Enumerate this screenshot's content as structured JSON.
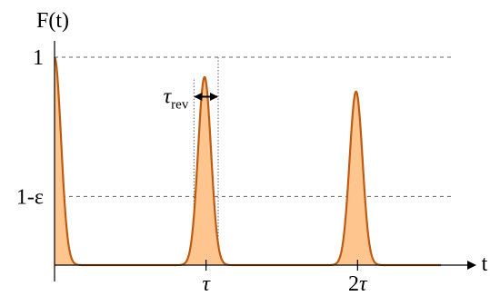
{
  "chart_data": {
    "type": "area",
    "title": "",
    "ylabel": "F(t)",
    "xlabel": "t",
    "xlim": [
      0,
      2.55
    ],
    "ylim": [
      0,
      1
    ],
    "y_ticks": [
      {
        "value": 1.0,
        "label": "1"
      },
      {
        "value": 0.33,
        "label": "1-ε"
      }
    ],
    "x_ticks": [
      {
        "value": 1.0,
        "label": "τ",
        "italic": true
      },
      {
        "value": 2.0,
        "label": "2τ",
        "italic_suffix": true
      }
    ],
    "series": [
      {
        "peaks": [
          {
            "center": 0.0,
            "height": 1.0,
            "width": 0.09
          },
          {
            "center": 0.99,
            "height": 0.905,
            "width": 0.09
          },
          {
            "center": 1.99,
            "height": 0.835,
            "width": 0.09
          }
        ],
        "baseline": 0.0
      }
    ],
    "annotations": [
      {
        "type": "dashed-hline",
        "y": 1.0
      },
      {
        "type": "dashed-hline",
        "y": 0.33
      },
      {
        "type": "dotted-vline",
        "x": 0.92,
        "y_top": 0.9
      },
      {
        "type": "dotted-vline",
        "x": 1.08,
        "y_top": 1.0
      },
      {
        "type": "width-arrow",
        "x1": 0.92,
        "x2": 1.08,
        "y": 0.81,
        "label": "τ",
        "label_sub": "rev"
      }
    ],
    "colors": {
      "fill": "#ffc58f",
      "stroke": "#bd5b12",
      "axis": "#000000",
      "guide": "#666666"
    }
  }
}
